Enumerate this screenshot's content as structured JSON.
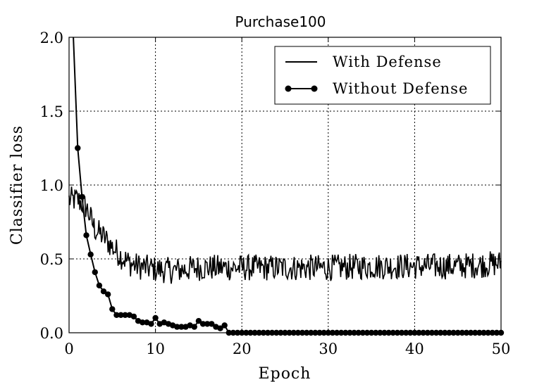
{
  "chart_data": {
    "type": "line",
    "title": "Purchase100",
    "xlabel": "Epoch",
    "ylabel": "Classifier loss",
    "xlim": [
      0,
      50
    ],
    "ylim": [
      0,
      2.0
    ],
    "xticks": [
      0,
      10,
      20,
      30,
      40,
      50
    ],
    "xtick_labels": [
      "0",
      "10",
      "20",
      "30",
      "40",
      "50"
    ],
    "yticks": [
      0,
      0.5,
      1.0,
      1.5,
      2.0
    ],
    "ytick_labels": [
      "0.0",
      "0.5",
      "1.0",
      "1.5",
      "2.0"
    ],
    "grid": true,
    "legend_position": "top-right",
    "series": [
      {
        "name": "With Defense",
        "style": "noisy-line",
        "x": [
          0,
          1,
          2,
          3,
          4,
          5,
          6,
          7,
          8,
          9,
          10,
          12,
          15,
          20,
          25,
          30,
          35,
          40,
          45,
          50
        ],
        "values": [
          0.9,
          0.9,
          0.85,
          0.7,
          0.65,
          0.58,
          0.52,
          0.47,
          0.45,
          0.44,
          0.43,
          0.42,
          0.44,
          0.44,
          0.44,
          0.44,
          0.45,
          0.45,
          0.45,
          0.47
        ]
      },
      {
        "name": "Without Defense",
        "style": "line-with-markers",
        "x": [
          0.5,
          1.0,
          1.5,
          2.0,
          2.5,
          3.0,
          3.5,
          4.0,
          4.5,
          5.0,
          5.5,
          6.0,
          6.5,
          7.0,
          7.5,
          8.0,
          8.5,
          9.0,
          9.5,
          10.0,
          10.5,
          11.0,
          11.5,
          12.0,
          12.5,
          13.0,
          13.5,
          14.0,
          14.5,
          15.0,
          15.5,
          16.0,
          16.5,
          17.0,
          17.5,
          18.0,
          18.5,
          19.0,
          19.5,
          20.0,
          20.5,
          21.0,
          21.5,
          22.0,
          22.5,
          23.0,
          23.5,
          24.0,
          24.5,
          25.0,
          25.5,
          26.0,
          26.5,
          27.0,
          27.5,
          28.0,
          28.5,
          29.0,
          29.5,
          30.0,
          30.5,
          31.0,
          31.5,
          32.0,
          32.5,
          33.0,
          33.5,
          34.0,
          34.5,
          35.0,
          35.5,
          36.0,
          36.5,
          37.0,
          37.5,
          38.0,
          38.5,
          39.0,
          39.5,
          40.0,
          40.5,
          41.0,
          41.5,
          42.0,
          42.5,
          43.0,
          43.5,
          44.0,
          44.5,
          45.0,
          45.5,
          46.0,
          46.5,
          47.0,
          47.5,
          48.0,
          48.5,
          49.0,
          49.5,
          50.0
        ],
        "values": [
          2.0,
          1.25,
          0.92,
          0.66,
          0.53,
          0.41,
          0.32,
          0.28,
          0.26,
          0.16,
          0.12,
          0.12,
          0.12,
          0.12,
          0.11,
          0.08,
          0.07,
          0.07,
          0.06,
          0.1,
          0.06,
          0.07,
          0.06,
          0.05,
          0.04,
          0.04,
          0.04,
          0.05,
          0.04,
          0.08,
          0.06,
          0.06,
          0.06,
          0.04,
          0.03,
          0.05,
          0.0,
          0.0,
          0.0,
          0.0,
          0.0,
          0.0,
          0.0,
          0.0,
          0.0,
          0.0,
          0.0,
          0.0,
          0.0,
          0.0,
          0.0,
          0.0,
          0.0,
          0.0,
          0.0,
          0.0,
          0.0,
          0.0,
          0.0,
          0.0,
          0.0,
          0.0,
          0.0,
          0.0,
          0.0,
          0.0,
          0.0,
          0.0,
          0.0,
          0.0,
          0.0,
          0.0,
          0.0,
          0.0,
          0.0,
          0.0,
          0.0,
          0.0,
          0.0,
          0.0,
          0.0,
          0.0,
          0.0,
          0.0,
          0.0,
          0.0,
          0.0,
          0.0,
          0.0,
          0.0,
          0.0,
          0.0,
          0.0,
          0.0,
          0.0,
          0.0,
          0.0,
          0.0,
          0.0,
          0.0
        ]
      }
    ]
  },
  "colors": {
    "line": "#000000",
    "background": "#ffffff"
  }
}
